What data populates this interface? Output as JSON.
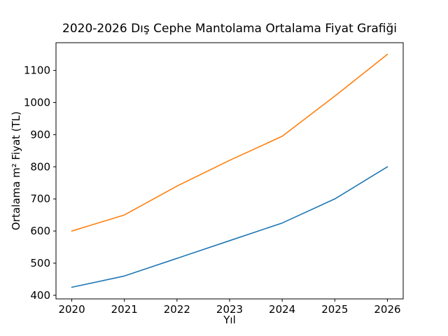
{
  "figure": {
    "background": "#ffffff"
  },
  "chart_data": {
    "type": "line",
    "title": "2020-2026 Dış Cephe Mantolama Ortalama Fiyat Grafiği",
    "xlabel": "Yıl",
    "ylabel": "Ortalama m² Fiyat (TL)",
    "x": [
      2020,
      2021,
      2022,
      2023,
      2024,
      2025,
      2026
    ],
    "series": [
      {
        "color": "#1f77b4",
        "values": [
          425,
          460,
          515,
          570,
          625,
          700,
          800
        ]
      },
      {
        "color": "#ff7f0e",
        "values": [
          600,
          650,
          740,
          820,
          895,
          1020,
          1150
        ]
      }
    ],
    "xticks": [
      "2020",
      "2021",
      "2022",
      "2023",
      "2024",
      "2025",
      "2026"
    ],
    "yticks": [
      400,
      500,
      600,
      700,
      800,
      900,
      1000,
      1100
    ],
    "xlim": [
      2019.7,
      2026.3
    ],
    "ylim": [
      388.75,
      1186.25
    ],
    "grid": false,
    "legend": null,
    "axis_color": "#000000",
    "text_color": "#000000"
  }
}
